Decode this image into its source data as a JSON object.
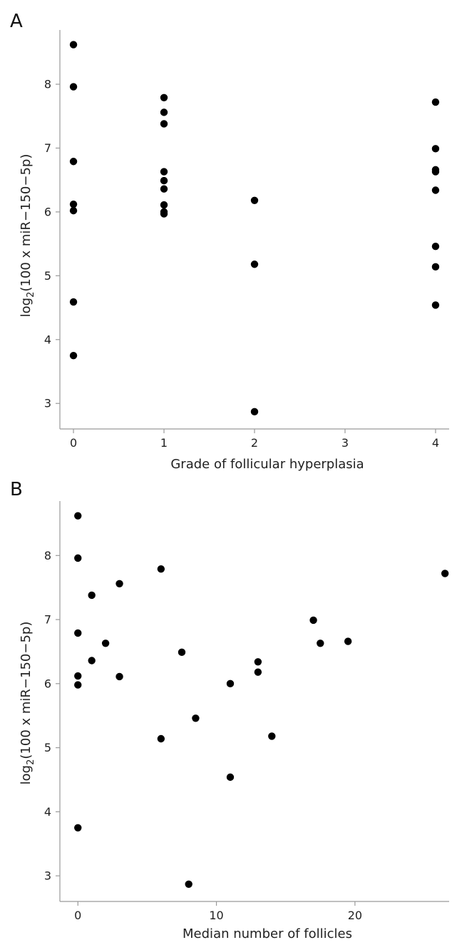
{
  "figure": {
    "colors": {
      "background": "#ffffff",
      "axis": "#9a9a9a",
      "points": "#000000",
      "text": "#222222"
    }
  },
  "chart_data": [
    {
      "panel": "A",
      "type": "scatter",
      "xlabel": "Grade of follicular hyperplasia",
      "ylabel": {
        "prefix": "log",
        "subscript": "2",
        "suffix": "(100 x miR−150−5p)"
      },
      "xlim": [
        -0.15,
        4.15
      ],
      "ylim": [
        2.6,
        8.85
      ],
      "xticks": [
        0,
        1,
        2,
        3,
        4
      ],
      "yticks": [
        3,
        4,
        5,
        6,
        7,
        8
      ],
      "points": [
        {
          "x": 0,
          "y": 8.62
        },
        {
          "x": 0,
          "y": 7.96
        },
        {
          "x": 0,
          "y": 6.79
        },
        {
          "x": 0,
          "y": 6.12
        },
        {
          "x": 0,
          "y": 6.02
        },
        {
          "x": 0,
          "y": 4.59
        },
        {
          "x": 0,
          "y": 3.75
        },
        {
          "x": 1,
          "y": 7.79
        },
        {
          "x": 1,
          "y": 7.56
        },
        {
          "x": 1,
          "y": 7.38
        },
        {
          "x": 1,
          "y": 6.63
        },
        {
          "x": 1,
          "y": 6.49
        },
        {
          "x": 1,
          "y": 6.36
        },
        {
          "x": 1,
          "y": 6.11
        },
        {
          "x": 1,
          "y": 6.0
        },
        {
          "x": 1,
          "y": 5.97
        },
        {
          "x": 2,
          "y": 6.18
        },
        {
          "x": 2,
          "y": 5.18
        },
        {
          "x": 2,
          "y": 2.87
        },
        {
          "x": 4,
          "y": 7.72
        },
        {
          "x": 4,
          "y": 6.99
        },
        {
          "x": 4,
          "y": 6.66
        },
        {
          "x": 4,
          "y": 6.63
        },
        {
          "x": 4,
          "y": 6.34
        },
        {
          "x": 4,
          "y": 5.46
        },
        {
          "x": 4,
          "y": 5.14
        },
        {
          "x": 4,
          "y": 4.54
        }
      ]
    },
    {
      "panel": "B",
      "type": "scatter",
      "xlabel": "Median number of follicles",
      "ylabel": {
        "prefix": "log",
        "subscript": "2",
        "suffix": "(100 x miR−150−5p)"
      },
      "xlim": [
        -1.3,
        26.8
      ],
      "ylim": [
        2.6,
        8.85
      ],
      "xticks": [
        0,
        10,
        20
      ],
      "yticks": [
        3,
        4,
        5,
        6,
        7,
        8
      ],
      "points": [
        {
          "x": 0,
          "y": 8.62
        },
        {
          "x": 0,
          "y": 7.96
        },
        {
          "x": 0,
          "y": 6.79
        },
        {
          "x": 0,
          "y": 6.12
        },
        {
          "x": 0,
          "y": 5.98
        },
        {
          "x": 0,
          "y": 3.75
        },
        {
          "x": 1,
          "y": 7.38
        },
        {
          "x": 1,
          "y": 6.36
        },
        {
          "x": 2,
          "y": 6.63
        },
        {
          "x": 3,
          "y": 7.56
        },
        {
          "x": 3,
          "y": 6.11
        },
        {
          "x": 6,
          "y": 7.79
        },
        {
          "x": 6,
          "y": 5.14
        },
        {
          "x": 7.5,
          "y": 6.49
        },
        {
          "x": 8,
          "y": 2.87
        },
        {
          "x": 8.5,
          "y": 5.46
        },
        {
          "x": 11,
          "y": 6.0
        },
        {
          "x": 11,
          "y": 4.54
        },
        {
          "x": 13,
          "y": 6.34
        },
        {
          "x": 13,
          "y": 6.18
        },
        {
          "x": 14,
          "y": 5.18
        },
        {
          "x": 17,
          "y": 6.99
        },
        {
          "x": 17.5,
          "y": 6.63
        },
        {
          "x": 19.5,
          "y": 6.66
        },
        {
          "x": 26.5,
          "y": 7.72
        }
      ]
    }
  ]
}
